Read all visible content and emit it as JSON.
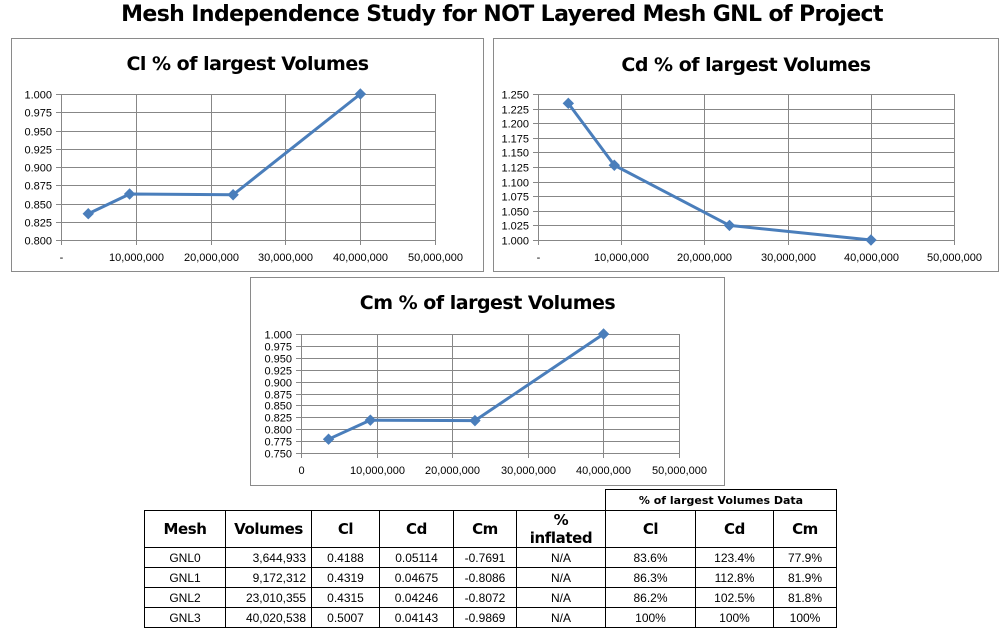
{
  "page": {
    "title": "Mesh Independence Study for NOT Layered Mesh GNL of Project"
  },
  "chart_data": [
    {
      "id": "cl",
      "type": "line",
      "title": "Cl % of largest Volumes",
      "xlabel": "",
      "ylabel": "",
      "x": [
        3644933,
        9172312,
        23010355,
        40020538
      ],
      "series": [
        {
          "name": "Cl %",
          "values": [
            0.836,
            0.863,
            0.862,
            1.0
          ],
          "color": "#4a7ebb"
        }
      ],
      "xlim": [
        0,
        50000000
      ],
      "ylim": [
        0.8,
        1.0
      ],
      "x_ticks": [
        0,
        10000000,
        20000000,
        30000000,
        40000000,
        50000000
      ],
      "x_tick_labels": [
        "-",
        "10,000,000",
        "20,000,000",
        "30,000,000",
        "40,000,000",
        "50,000,000"
      ],
      "y_ticks": [
        0.8,
        0.825,
        0.85,
        0.875,
        0.9,
        0.925,
        0.95,
        0.975,
        1.0
      ],
      "y_tick_labels": [
        "0.800",
        "0.825",
        "0.850",
        "0.875",
        "0.900",
        "0.925",
        "0.950",
        "0.975",
        "1.000"
      ],
      "grid": true,
      "legend": "none",
      "marker": "diamond"
    },
    {
      "id": "cd",
      "type": "line",
      "title": "Cd % of largest Volumes",
      "xlabel": "",
      "ylabel": "",
      "x": [
        3644933,
        9172312,
        23010355,
        40020538
      ],
      "series": [
        {
          "name": "Cd %",
          "values": [
            1.234,
            1.128,
            1.025,
            1.0
          ],
          "color": "#4a7ebb"
        }
      ],
      "xlim": [
        0,
        50000000
      ],
      "ylim": [
        1.0,
        1.25
      ],
      "x_ticks": [
        0,
        10000000,
        20000000,
        30000000,
        40000000,
        50000000
      ],
      "x_tick_labels": [
        "-",
        "10,000,000",
        "20,000,000",
        "30,000,000",
        "40,000,000",
        "50,000,000"
      ],
      "y_ticks": [
        1.0,
        1.025,
        1.05,
        1.075,
        1.1,
        1.125,
        1.15,
        1.175,
        1.2,
        1.225,
        1.25
      ],
      "y_tick_labels": [
        "1.000",
        "1.025",
        "1.050",
        "1.075",
        "1.100",
        "1.125",
        "1.150",
        "1.175",
        "1.200",
        "1.225",
        "1.250"
      ],
      "grid": true,
      "legend": "none",
      "marker": "diamond"
    },
    {
      "id": "cm",
      "type": "line",
      "title": "Cm % of largest Volumes",
      "xlabel": "",
      "ylabel": "",
      "x": [
        3644933,
        9172312,
        23010355,
        40020538
      ],
      "series": [
        {
          "name": "Cm %",
          "values": [
            0.779,
            0.819,
            0.818,
            1.0
          ],
          "color": "#4a7ebb"
        }
      ],
      "xlim": [
        0,
        50000000
      ],
      "ylim": [
        0.75,
        1.0
      ],
      "x_ticks": [
        0,
        10000000,
        20000000,
        30000000,
        40000000,
        50000000
      ],
      "x_tick_labels": [
        "0",
        "10,000,000",
        "20,000,000",
        "30,000,000",
        "40,000,000",
        "50,000,000"
      ],
      "y_ticks": [
        0.75,
        0.775,
        0.8,
        0.825,
        0.85,
        0.875,
        0.9,
        0.925,
        0.95,
        0.975,
        1.0
      ],
      "y_tick_labels": [
        "0.750",
        "0.775",
        "0.800",
        "0.825",
        "0.850",
        "0.875",
        "0.900",
        "0.925",
        "0.950",
        "0.975",
        "1.000"
      ],
      "grid": true,
      "legend": "none",
      "marker": "diamond"
    }
  ],
  "table": {
    "group_header": "% of largest Volumes Data",
    "headers": [
      "Mesh",
      "Volumes",
      "Cl",
      "Cd",
      "Cm",
      "% inflated",
      "Cl",
      "Cd",
      "Cm"
    ],
    "rows": [
      [
        "GNL0",
        "3,644,933",
        "0.4188",
        "0.05114",
        "-0.7691",
        "N/A",
        "83.6%",
        "123.4%",
        "77.9%"
      ],
      [
        "GNL1",
        "9,172,312",
        "0.4319",
        "0.04675",
        "-0.8086",
        "N/A",
        "86.3%",
        "112.8%",
        "81.9%"
      ],
      [
        "GNL2",
        "23,010,355",
        "0.4315",
        "0.04246",
        "-0.8072",
        "N/A",
        "86.2%",
        "102.5%",
        "81.8%"
      ],
      [
        "GNL3",
        "40,020,538",
        "0.5007",
        "0.04143",
        "-0.9869",
        "N/A",
        "100%",
        "100%",
        "100%"
      ]
    ]
  }
}
